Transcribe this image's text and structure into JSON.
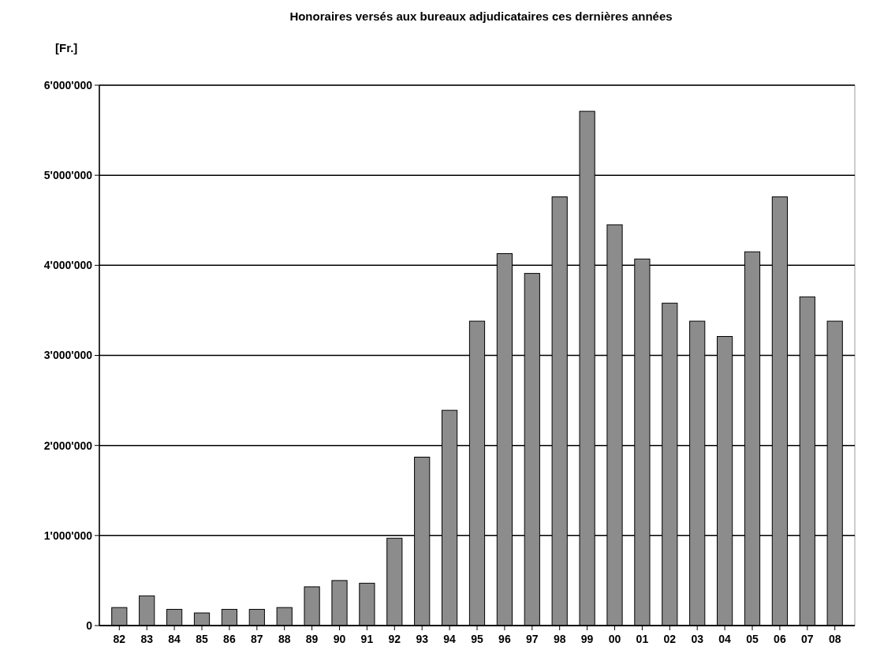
{
  "chart_data": {
    "type": "bar",
    "title": "Honoraires versés aux bureaux adjudicataires ces dernières années",
    "ylabel": "[Fr.]",
    "categories": [
      "82",
      "83",
      "84",
      "85",
      "86",
      "87",
      "88",
      "89",
      "90",
      "91",
      "92",
      "93",
      "94",
      "95",
      "96",
      "97",
      "98",
      "99",
      "00",
      "01",
      "02",
      "03",
      "04",
      "05",
      "06",
      "07",
      "08"
    ],
    "values": [
      200000,
      330000,
      180000,
      140000,
      180000,
      180000,
      200000,
      430000,
      500000,
      470000,
      970000,
      1870000,
      2390000,
      3380000,
      4130000,
      3910000,
      4760000,
      5710000,
      4450000,
      4070000,
      3580000,
      3380000,
      3210000,
      4150000,
      4760000,
      3650000,
      3380000
    ],
    "color": "#8c8c8c",
    "ylim": [
      0,
      6000000
    ],
    "yticks": [
      0,
      {
        "value": 1000000,
        "label": "1'000'000"
      },
      {
        "value": 2000000,
        "label": "2'000'000"
      },
      {
        "value": 3000000,
        "label": "3'000'000"
      },
      {
        "value": 4000000,
        "label": "4'000'000"
      },
      {
        "value": 5000000,
        "label": "5'000'000"
      },
      {
        "value": 6000000,
        "label": "6'000'000"
      }
    ],
    "grid": "y"
  }
}
